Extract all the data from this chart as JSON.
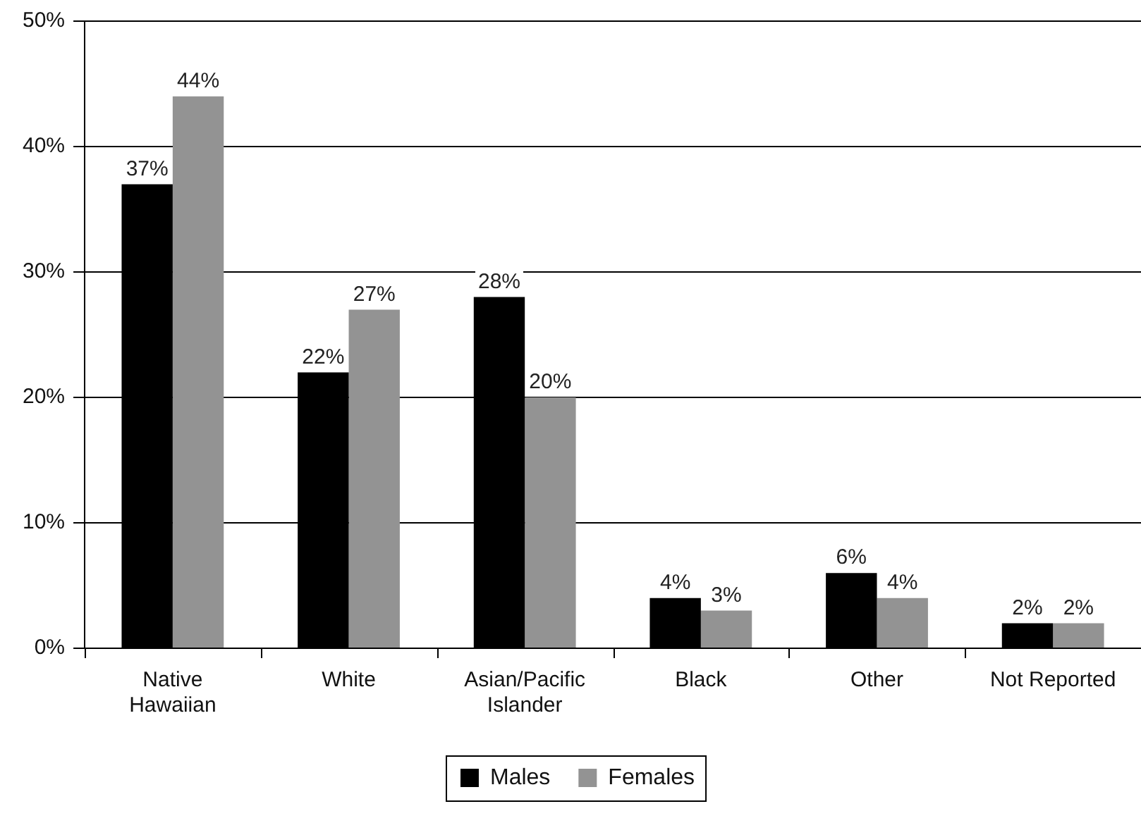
{
  "chart_data": {
    "type": "bar",
    "categories": [
      "Native\nHawaiian",
      "White",
      "Asian/Pacific\nIslander",
      "Black",
      "Other",
      "Not Reported"
    ],
    "series": [
      {
        "name": "Males",
        "color": "#000000",
        "values": [
          37,
          22,
          28,
          4,
          6,
          2
        ],
        "value_labels": [
          "37%",
          "22%",
          "28%",
          "4%",
          "6%",
          "2%"
        ]
      },
      {
        "name": "Females",
        "color": "#939393",
        "values": [
          44,
          27,
          20,
          3,
          4,
          2
        ],
        "value_labels": [
          "44%",
          "27%",
          "20%",
          "3%",
          "4%",
          "2%"
        ]
      }
    ],
    "ylim": [
      0,
      50
    ],
    "yticks": [
      {
        "value": 0,
        "label": "0%"
      },
      {
        "value": 10,
        "label": "10%"
      },
      {
        "value": 20,
        "label": "20%"
      },
      {
        "value": 30,
        "label": "30%"
      },
      {
        "value": 40,
        "label": "40%"
      },
      {
        "value": 50,
        "label": "50%"
      }
    ],
    "grid": "y",
    "legend": "bottom"
  }
}
